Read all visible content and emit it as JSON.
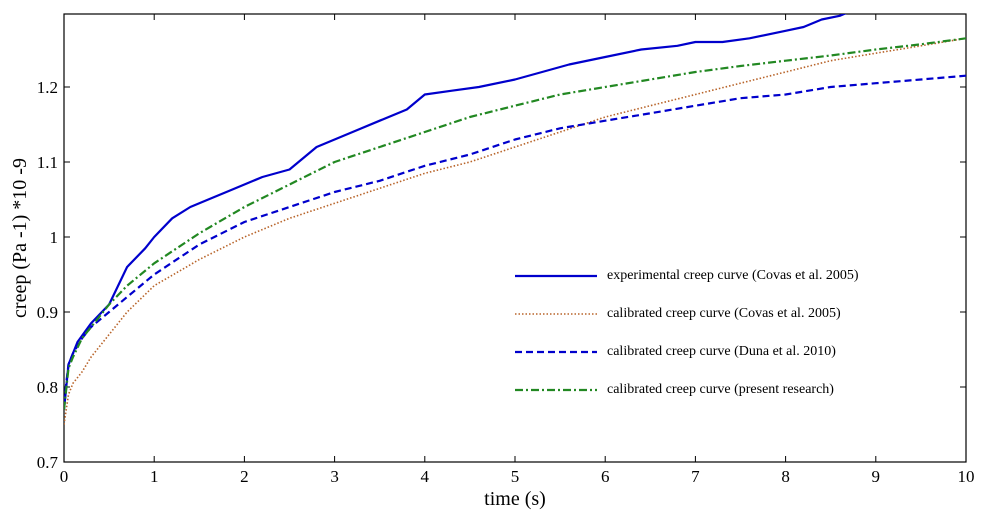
{
  "chart_data": {
    "type": "line",
    "title": "",
    "xlabel": "time (s)",
    "ylabel": "creep (Pa -1) *10 -9",
    "xlim": [
      0,
      10
    ],
    "ylim": [
      0.7,
      1.3
    ],
    "xticks": [
      0,
      1,
      2,
      3,
      4,
      5,
      6,
      7,
      8,
      9,
      10
    ],
    "xtick_labels": [
      "0",
      "1",
      "2",
      "3",
      "4",
      "5",
      "6",
      "7",
      "8",
      "9",
      "10"
    ],
    "yticks": [
      0.7,
      0.8,
      0.9,
      1.0,
      1.1,
      1.2
    ],
    "ytick_labels": [
      "0.7",
      "0.8",
      "0.9",
      "1",
      "1.1",
      "1.2"
    ],
    "grid": false,
    "legend_position": "lower-right",
    "series": [
      {
        "name": "experimental creep curve (Covas et al. 2005)",
        "color": "#0000cc",
        "style": "solid",
        "x": [
          0,
          0.05,
          0.15,
          0.3,
          0.5,
          0.7,
          0.9,
          1.0,
          1.2,
          1.4,
          1.6,
          1.8,
          2.0,
          2.2,
          2.5,
          2.8,
          3.0,
          3.2,
          3.5,
          3.8,
          4.0,
          4.3,
          4.6,
          5.0,
          5.3,
          5.6,
          6.0,
          6.4,
          6.8,
          7.0,
          7.3,
          7.6,
          8.0,
          8.2,
          8.4,
          8.6,
          8.7
        ],
        "y": [
          0.77,
          0.83,
          0.86,
          0.885,
          0.91,
          0.96,
          0.985,
          1.0,
          1.025,
          1.04,
          1.05,
          1.06,
          1.07,
          1.08,
          1.09,
          1.12,
          1.13,
          1.14,
          1.155,
          1.17,
          1.19,
          1.195,
          1.2,
          1.21,
          1.22,
          1.23,
          1.24,
          1.25,
          1.255,
          1.26,
          1.26,
          1.265,
          1.275,
          1.28,
          1.29,
          1.295,
          1.3
        ]
      },
      {
        "name": "calibrated creep curve (Covas et al. 2005)",
        "color": "#b8642a",
        "style": "dotted",
        "x": [
          0,
          0.05,
          0.1,
          0.2,
          0.3,
          0.5,
          0.7,
          1.0,
          1.5,
          2.0,
          2.5,
          3.0,
          3.5,
          4.0,
          4.5,
          5.0,
          5.5,
          6.0,
          6.5,
          7.0,
          7.5,
          8.0,
          8.5,
          9.0,
          9.5,
          10.0
        ],
        "y": [
          0.75,
          0.79,
          0.805,
          0.82,
          0.84,
          0.87,
          0.9,
          0.935,
          0.97,
          1.0,
          1.025,
          1.045,
          1.065,
          1.085,
          1.1,
          1.12,
          1.14,
          1.16,
          1.175,
          1.19,
          1.205,
          1.22,
          1.235,
          1.245,
          1.255,
          1.265
        ]
      },
      {
        "name": "calibrated creep curve (Duna et al. 2010)",
        "color": "#0000cc",
        "style": "dashed",
        "x": [
          0,
          0.05,
          0.1,
          0.2,
          0.3,
          0.5,
          0.7,
          1.0,
          1.5,
          2.0,
          2.5,
          3.0,
          3.5,
          4.0,
          4.5,
          5.0,
          5.5,
          6.0,
          6.5,
          7.0,
          7.5,
          8.0,
          8.5,
          9.0,
          9.5,
          10.0
        ],
        "y": [
          0.78,
          0.83,
          0.845,
          0.865,
          0.88,
          0.9,
          0.92,
          0.95,
          0.99,
          1.02,
          1.04,
          1.06,
          1.075,
          1.095,
          1.11,
          1.13,
          1.145,
          1.155,
          1.165,
          1.175,
          1.185,
          1.19,
          1.2,
          1.205,
          1.21,
          1.215
        ]
      },
      {
        "name": "calibrated creep curve (present research)",
        "color": "#228822",
        "style": "dashdot",
        "x": [
          0,
          0.05,
          0.1,
          0.2,
          0.3,
          0.5,
          0.7,
          1.0,
          1.5,
          2.0,
          2.5,
          3.0,
          3.5,
          4.0,
          4.5,
          5.0,
          5.5,
          6.0,
          6.5,
          7.0,
          7.5,
          8.0,
          8.5,
          9.0,
          9.5,
          10.0
        ],
        "y": [
          0.77,
          0.825,
          0.84,
          0.865,
          0.88,
          0.91,
          0.935,
          0.965,
          1.005,
          1.04,
          1.07,
          1.1,
          1.12,
          1.14,
          1.16,
          1.175,
          1.19,
          1.2,
          1.21,
          1.22,
          1.228,
          1.235,
          1.242,
          1.25,
          1.257,
          1.265
        ]
      }
    ]
  }
}
